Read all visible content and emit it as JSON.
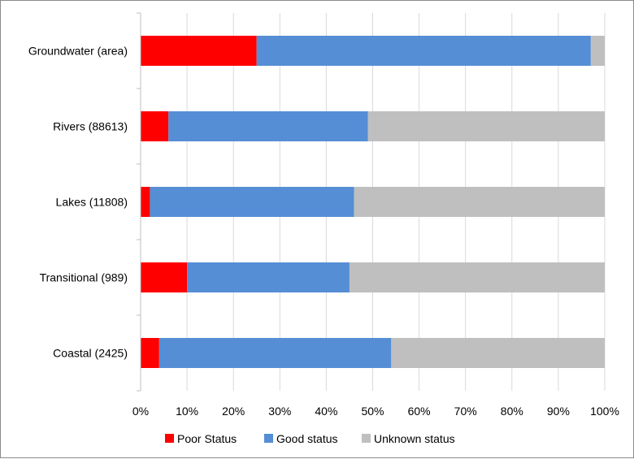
{
  "chart_data": {
    "type": "bar",
    "orientation": "horizontal",
    "stacked": "100%",
    "categories": [
      "Groundwater (area)",
      "Rivers (88613)",
      "Lakes (11808)",
      "Transitional (989)",
      "Coastal (2425)"
    ],
    "series": [
      {
        "name": "Poor Status",
        "color": "#ff0000",
        "values": [
          25,
          6,
          2,
          10,
          4
        ]
      },
      {
        "name": "Good status",
        "color": "#558ed5",
        "values": [
          72,
          43,
          44,
          35,
          50
        ]
      },
      {
        "name": "Unknown status",
        "color": "#bfbfbf",
        "values": [
          3,
          51,
          54,
          55,
          46
        ]
      }
    ],
    "x_ticks": [
      "0%",
      "10%",
      "20%",
      "30%",
      "40%",
      "50%",
      "60%",
      "70%",
      "80%",
      "90%",
      "100%"
    ],
    "xlim": [
      0,
      100
    ],
    "grid": true,
    "legend": "bottom"
  }
}
